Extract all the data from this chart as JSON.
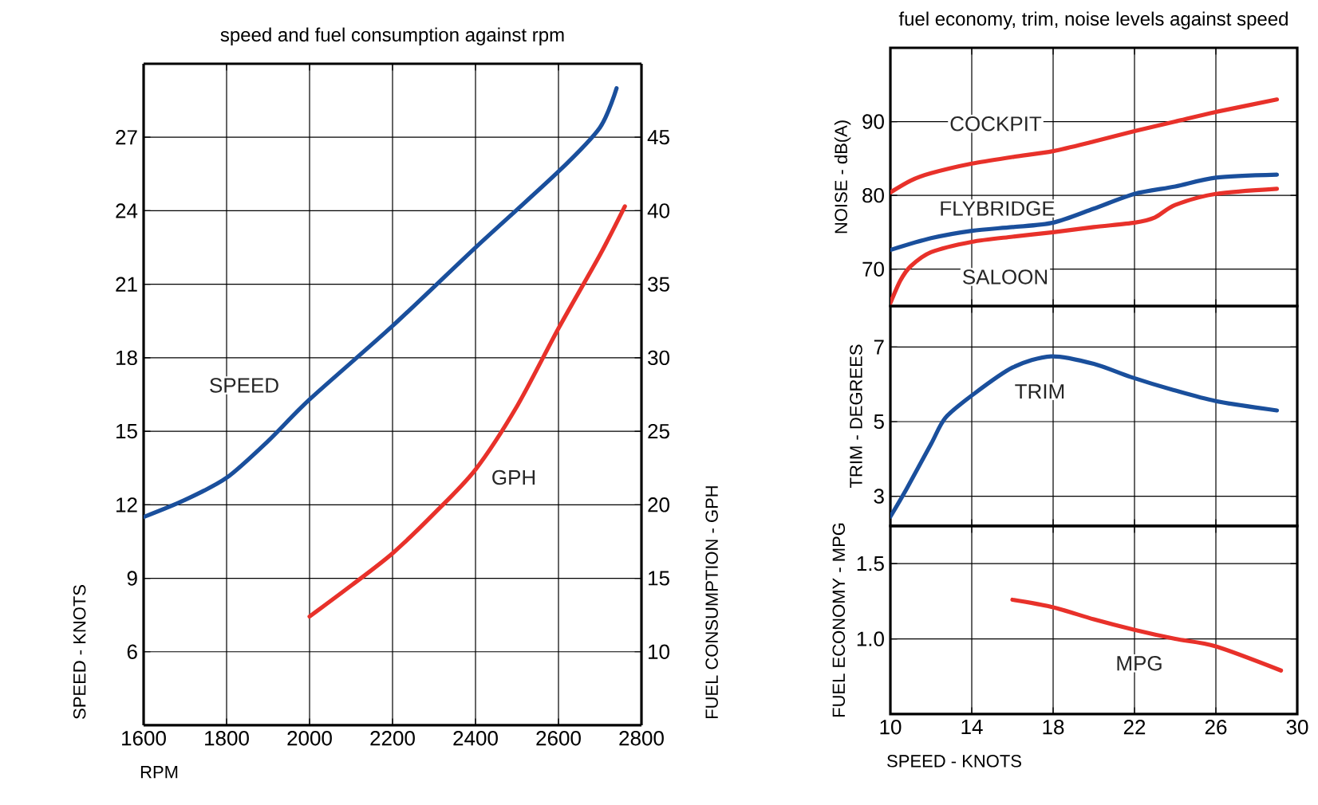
{
  "chart_data": [
    {
      "type": "line",
      "title": "speed and fuel consumption against rpm",
      "xlabel": "RPM",
      "ylabel": "SPEED - KNOTS",
      "y2label": "FUEL CONSUMPTION - GPH",
      "xlim": [
        1600,
        2800
      ],
      "xticks": [
        1600,
        1800,
        2000,
        2200,
        2400,
        2600,
        2800
      ],
      "ylim": [
        3,
        30
      ],
      "yticks": [
        6,
        9,
        12,
        15,
        18,
        21,
        24,
        27
      ],
      "y2lim": [
        5,
        50
      ],
      "y2ticks": [
        10,
        15,
        20,
        25,
        30,
        35,
        40,
        45
      ],
      "grid": true,
      "series": [
        {
          "name": "SPEED",
          "color": "#1a4f9c",
          "x": [
            1600,
            1700,
            1800,
            1900,
            2000,
            2200,
            2400,
            2600,
            2700,
            2740
          ],
          "values": [
            11.5,
            12.2,
            13.1,
            14.6,
            16.3,
            19.3,
            22.5,
            25.6,
            27.4,
            29.0
          ]
        },
        {
          "name": "GPH",
          "color": "#e8312a",
          "axis": "y2",
          "x": [
            2000,
            2100,
            2200,
            2300,
            2400,
            2500,
            2600,
            2700,
            2760
          ],
          "values": [
            12.4,
            14.5,
            16.7,
            19.4,
            22.4,
            26.7,
            32.0,
            37.0,
            40.3
          ]
        }
      ]
    },
    {
      "type": "line",
      "title": "fuel economy, trim, noise levels against speed",
      "ylabel": "NOISE - dB(A)",
      "xlim": [
        10,
        30
      ],
      "xticks": [
        10,
        14,
        18,
        22,
        26,
        30
      ],
      "ylim": [
        65,
        100
      ],
      "yticks": [
        70,
        80,
        90
      ],
      "grid": true,
      "tick_labels": "y",
      "series": [
        {
          "name": "COCKPIT",
          "color": "#e8312a",
          "x": [
            10,
            11,
            12,
            14,
            16,
            18,
            20,
            22,
            24,
            26,
            29
          ],
          "values": [
            80.4,
            82,
            83,
            84.3,
            85.2,
            86,
            87.3,
            88.7,
            90,
            91.3,
            93
          ]
        },
        {
          "name": "FLYBRIDGE",
          "color": "#1a4f9c",
          "x": [
            10,
            12,
            14,
            16,
            18,
            20,
            22,
            24,
            26,
            29
          ],
          "values": [
            72.6,
            74.2,
            75.2,
            75.7,
            76.3,
            78.2,
            80.2,
            81.2,
            82.4,
            82.8
          ]
        },
        {
          "name": "SALOON",
          "color": "#e8312a",
          "x": [
            10,
            10.5,
            11,
            12,
            14,
            16,
            18,
            20,
            22,
            23,
            24,
            26,
            29
          ],
          "values": [
            65.4,
            68.5,
            70.4,
            72.3,
            73.7,
            74.4,
            75,
            75.7,
            76.3,
            77,
            78.7,
            80.2,
            80.9
          ]
        }
      ]
    },
    {
      "type": "line",
      "ylabel": "TRIM - DEGREES",
      "xlim": [
        10,
        30
      ],
      "xticks": [
        10,
        14,
        18,
        22,
        26,
        30
      ],
      "ylim": [
        2.2,
        8.1
      ],
      "yticks": [
        3,
        5,
        7
      ],
      "grid": true,
      "tick_labels": "y",
      "series": [
        {
          "name": "TRIM",
          "color": "#1a4f9c",
          "x": [
            10,
            10.8,
            12,
            12.7,
            14,
            16,
            17.9,
            20,
            21.8,
            23.9,
            26,
            29
          ],
          "values": [
            2.45,
            3.2,
            4.4,
            5.1,
            5.7,
            6.45,
            6.75,
            6.55,
            6.2,
            5.85,
            5.55,
            5.3
          ]
        }
      ]
    },
    {
      "type": "line",
      "xlabel": "SPEED - KNOTS",
      "ylabel": "FUEL ECONOMY - MPG",
      "xlim": [
        10,
        30
      ],
      "xticks": [
        10,
        14,
        18,
        22,
        26,
        30
      ],
      "ylim": [
        0.5,
        1.75
      ],
      "yticks": [
        {
          "value": 1.0,
          "label": "1.0"
        },
        1.5
      ],
      "grid": true,
      "series": [
        {
          "name": "MPG",
          "color": "#e8312a",
          "x": [
            16,
            18,
            20,
            22,
            24,
            26,
            29.2
          ],
          "values": [
            1.26,
            1.21,
            1.13,
            1.06,
            1.0,
            0.95,
            0.79
          ]
        }
      ]
    }
  ]
}
